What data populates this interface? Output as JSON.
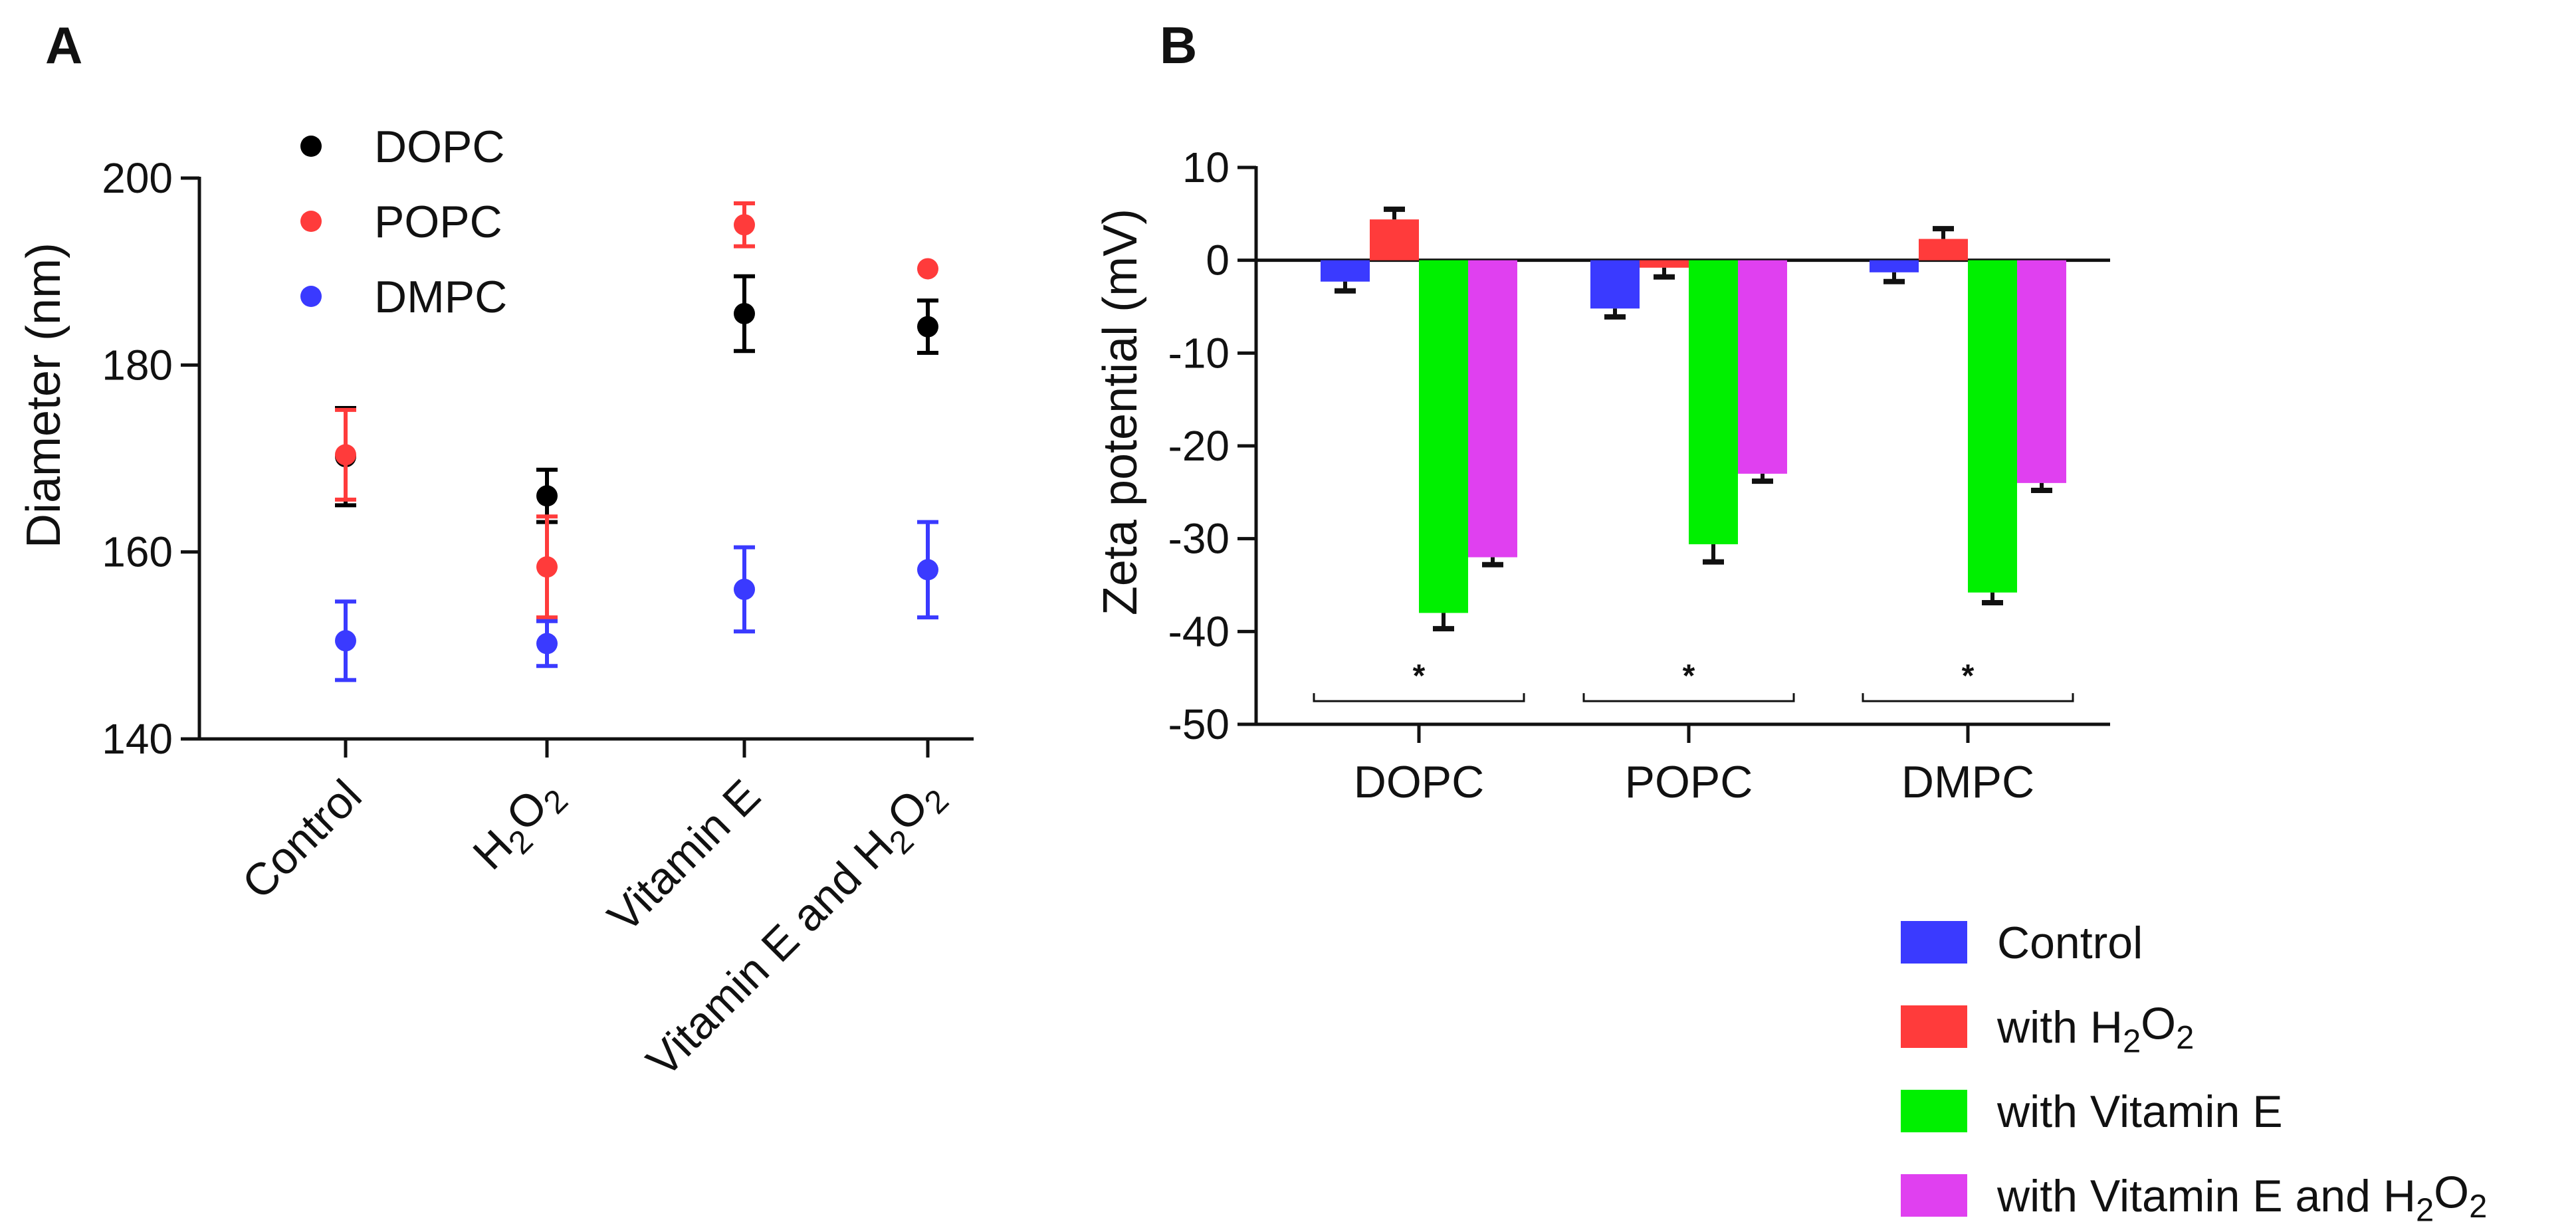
{
  "chart_data": [
    {
      "panel": "A",
      "type": "scatter",
      "title": "",
      "xlabel": "",
      "ylabel": "Diameter (nm)",
      "ylim": [
        140,
        200
      ],
      "yticks": [
        140,
        160,
        180,
        200
      ],
      "categories": [
        {
          "text": "Control",
          "h2o2": false
        },
        {
          "prefix": "H",
          "s1": "2",
          "mid": "O",
          "s2": "2",
          "suffix": "",
          "h2o2": true
        },
        {
          "text": "Vitamin E",
          "h2o2": false
        },
        {
          "prefix": "Vitamin E and H",
          "s1": "2",
          "mid": "O",
          "s2": "2",
          "suffix": "",
          "h2o2": true
        }
      ],
      "legend_position": "top-left",
      "series": [
        {
          "name": "DOPC",
          "color": "#000000",
          "values": [
            170.2,
            166.0,
            185.5,
            184.1
          ],
          "errors": [
            5.2,
            2.8,
            4.0,
            2.8
          ]
        },
        {
          "name": "POPC",
          "color": "#ff3b3b",
          "values": [
            170.4,
            158.4,
            195.0,
            190.3
          ],
          "errors": [
            4.8,
            5.4,
            2.3,
            0
          ]
        },
        {
          "name": "DMPC",
          "color": "#3a3aff",
          "values": [
            150.5,
            150.2,
            156.0,
            158.1
          ],
          "errors": [
            4.2,
            2.4,
            4.5,
            5.1
          ]
        }
      ]
    },
    {
      "panel": "B",
      "type": "bar",
      "title": "",
      "xlabel": "",
      "ylabel": "Zeta potential (mV)",
      "ylim": [
        -50,
        10
      ],
      "yticks": [
        10,
        0,
        -10,
        -20,
        -30,
        -40,
        -50
      ],
      "categories": [
        "DOPC",
        "POPC",
        "DMPC"
      ],
      "significance_marker": "*",
      "legend_position": "bottom-right",
      "series": [
        {
          "name": "Control",
          "label": {
            "text": "Control"
          },
          "color": "#3a3aff",
          "values": [
            -2.3,
            -5.2,
            -1.3
          ],
          "errors": [
            1.0,
            0.9,
            1.0
          ]
        },
        {
          "name": "with H2O2",
          "label": {
            "prefix": "with H",
            "s1": "2",
            "mid": "O",
            "s2": "2",
            "suffix": ""
          },
          "color": "#ff3b3b",
          "values": [
            4.4,
            -0.8,
            2.3
          ],
          "errors": [
            1.1,
            1.0,
            1.1
          ]
        },
        {
          "name": "with Vitamin E",
          "label": {
            "text": "with Vitamin E"
          },
          "color": "#00f000",
          "values": [
            -38.0,
            -30.6,
            -35.8
          ],
          "errors": [
            1.7,
            1.9,
            1.1
          ]
        },
        {
          "name": "with Vitamin E and H2O2",
          "label": {
            "prefix": "with Vitamin E and H",
            "s1": "2",
            "mid": "O",
            "s2": "2",
            "suffix": ""
          },
          "color": "#e040f0",
          "values": [
            -32.0,
            -23.0,
            -24.0
          ],
          "errors": [
            0.8,
            0.8,
            0.8
          ]
        }
      ]
    }
  ]
}
